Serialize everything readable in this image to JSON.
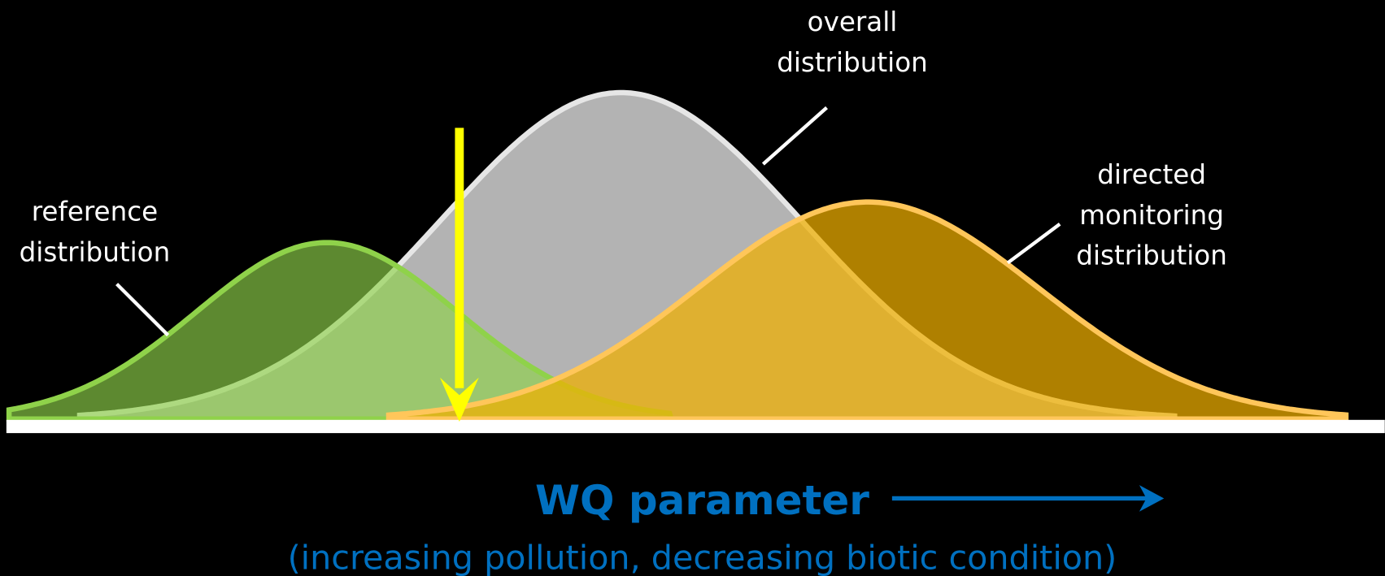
{
  "labels": {
    "overall": [
      "overall",
      "distribution"
    ],
    "reference": [
      "reference",
      "distribution"
    ],
    "directed": [
      "directed",
      "monitoring",
      "distribution"
    ]
  },
  "axis": {
    "title": "WQ parameter",
    "subtitle": "(increasing pollution, decreasing biotic condition)"
  }
}
